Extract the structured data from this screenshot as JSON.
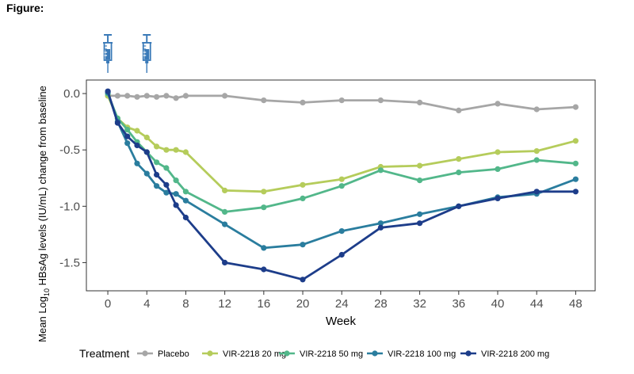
{
  "figure_label": "Figure:",
  "chart_data": {
    "type": "line",
    "title": "",
    "xlabel": "Week",
    "ylabel_parts": [
      "Mean Log",
      "10",
      " HBsAg levels (IU/mL) change from baseline"
    ],
    "xticks": [
      0,
      4,
      8,
      12,
      16,
      20,
      24,
      28,
      32,
      36,
      40,
      44,
      48
    ],
    "xtick_labels": [
      "0",
      "4",
      "8",
      "12",
      "16",
      "20",
      "24",
      "28",
      "32",
      "36",
      "40",
      "44",
      "48"
    ],
    "yticks": [
      0.0,
      -0.5,
      -1.0,
      -1.5
    ],
    "ytick_labels": [
      "0.0",
      "-0.5",
      "-1.0",
      "-1.5"
    ],
    "xlim": [
      -2.2,
      50
    ],
    "ylim": [
      -1.75,
      0.12
    ],
    "dose_markers_weeks": [
      0,
      4
    ],
    "legend_title": "Treatment",
    "series": [
      {
        "name": "Placebo",
        "color": "#a6a6a6",
        "x": [
          0,
          1,
          2,
          3,
          4,
          5,
          6,
          7,
          8,
          12,
          16,
          20,
          24,
          28,
          32,
          36,
          40,
          44,
          48
        ],
        "y": [
          -0.02,
          -0.02,
          -0.02,
          -0.03,
          -0.02,
          -0.03,
          -0.02,
          -0.04,
          -0.02,
          -0.02,
          -0.06,
          -0.08,
          -0.06,
          -0.06,
          -0.08,
          -0.15,
          -0.09,
          -0.14,
          -0.12
        ]
      },
      {
        "name": "VIR-2218 20 mg",
        "color": "#b5cc5b",
        "x": [
          0,
          1,
          2,
          3,
          4,
          5,
          6,
          7,
          8,
          12,
          16,
          20,
          24,
          28,
          32,
          36,
          40,
          44,
          48
        ],
        "y": [
          -0.02,
          -0.22,
          -0.3,
          -0.33,
          -0.39,
          -0.47,
          -0.5,
          -0.5,
          -0.52,
          -0.86,
          -0.87,
          -0.81,
          -0.76,
          -0.65,
          -0.64,
          -0.58,
          -0.52,
          -0.51,
          -0.42
        ]
      },
      {
        "name": "VIR-2218 50 mg",
        "color": "#52b78a",
        "x": [
          0,
          1,
          2,
          3,
          4,
          5,
          6,
          7,
          8,
          12,
          16,
          20,
          24,
          28,
          32,
          36,
          40,
          44,
          48
        ],
        "y": [
          0.0,
          -0.22,
          -0.32,
          -0.43,
          -0.52,
          -0.61,
          -0.66,
          -0.77,
          -0.87,
          -1.05,
          -1.01,
          -0.93,
          -0.82,
          -0.68,
          -0.77,
          -0.7,
          -0.67,
          -0.59,
          -0.62
        ]
      },
      {
        "name": "VIR-2218 100 mg",
        "color": "#2a7d9e",
        "x": [
          0,
          1,
          2,
          3,
          4,
          5,
          6,
          7,
          8,
          12,
          16,
          20,
          24,
          28,
          32,
          36,
          40,
          44,
          48
        ],
        "y": [
          0.01,
          -0.25,
          -0.44,
          -0.62,
          -0.71,
          -0.82,
          -0.88,
          -0.89,
          -0.95,
          -1.16,
          -1.37,
          -1.34,
          -1.22,
          -1.15,
          -1.07,
          -1.0,
          -0.92,
          -0.89,
          -0.76
        ]
      },
      {
        "name": "VIR-2218 200 mg",
        "color": "#1d3d8a",
        "x": [
          0,
          1,
          2,
          3,
          4,
          5,
          6,
          7,
          8,
          12,
          16,
          20,
          24,
          28,
          32,
          36,
          40,
          44,
          48
        ],
        "y": [
          0.02,
          -0.26,
          -0.38,
          -0.46,
          -0.52,
          -0.72,
          -0.81,
          -0.99,
          -1.1,
          -1.5,
          -1.56,
          -1.65,
          -1.43,
          -1.19,
          -1.15,
          -1.0,
          -0.93,
          -0.87,
          -0.87
        ]
      }
    ]
  }
}
